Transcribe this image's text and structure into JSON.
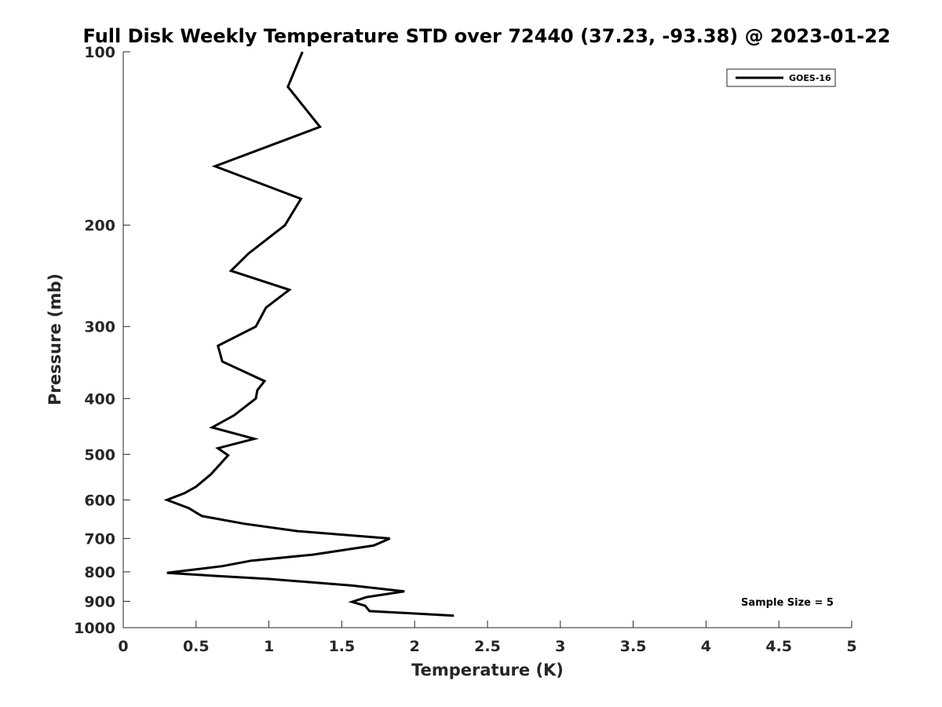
{
  "chart_data": {
    "type": "line",
    "title": "Full Disk Weekly Temperature STD over 72440 (37.23, -93.38) @ 2023-01-22",
    "xlabel": "Temperature (K)",
    "ylabel": "Pressure (mb)",
    "xlim": [
      0,
      5
    ],
    "ylim": [
      100,
      1000
    ],
    "y_scale": "log",
    "y_reversed": true,
    "x_ticks": [
      0,
      0.5,
      1,
      1.5,
      2,
      2.5,
      3,
      3.5,
      4,
      4.5,
      5
    ],
    "x_tick_labels": [
      "0",
      "0.5",
      "1",
      "1.5",
      "2",
      "2.5",
      "3",
      "3.5",
      "4",
      "4.5",
      "5"
    ],
    "y_ticks": [
      100,
      200,
      300,
      400,
      500,
      600,
      700,
      800,
      900,
      1000
    ],
    "y_tick_labels": [
      "100",
      "200",
      "300",
      "400",
      "500",
      "600",
      "700",
      "800",
      "900",
      "1000"
    ],
    "grid": false,
    "legend_position": "top-right",
    "annotation": "Sample Size = 5",
    "line_color": "#000000",
    "series": [
      {
        "name": "GOES-16",
        "points": [
          [
            1.23,
            100
          ],
          [
            1.13,
            115
          ],
          [
            1.35,
            135
          ],
          [
            0.63,
            158
          ],
          [
            1.22,
            180
          ],
          [
            1.11,
            200
          ],
          [
            0.86,
            224
          ],
          [
            0.74,
            240
          ],
          [
            1.14,
            259
          ],
          [
            0.98,
            278
          ],
          [
            0.91,
            300
          ],
          [
            0.65,
            324
          ],
          [
            0.68,
            345
          ],
          [
            0.97,
            373
          ],
          [
            0.92,
            387
          ],
          [
            0.91,
            400
          ],
          [
            0.76,
            428
          ],
          [
            0.61,
            449
          ],
          [
            0.9,
            470
          ],
          [
            0.65,
            488
          ],
          [
            0.72,
            502
          ],
          [
            0.6,
            542
          ],
          [
            0.5,
            569
          ],
          [
            0.42,
            584
          ],
          [
            0.3,
            600
          ],
          [
            0.45,
            620
          ],
          [
            0.54,
            640
          ],
          [
            0.83,
            660
          ],
          [
            1.2,
            680
          ],
          [
            1.83,
            700
          ],
          [
            1.72,
            720
          ],
          [
            1.3,
            747
          ],
          [
            0.88,
            765
          ],
          [
            0.68,
            782
          ],
          [
            0.3,
            803
          ],
          [
            0.6,
            812
          ],
          [
            1.0,
            823
          ],
          [
            1.57,
            845
          ],
          [
            1.93,
            865
          ],
          [
            1.67,
            885
          ],
          [
            1.57,
            902
          ],
          [
            1.66,
            916
          ],
          [
            1.69,
            936
          ],
          [
            2.27,
            953
          ]
        ]
      }
    ]
  }
}
